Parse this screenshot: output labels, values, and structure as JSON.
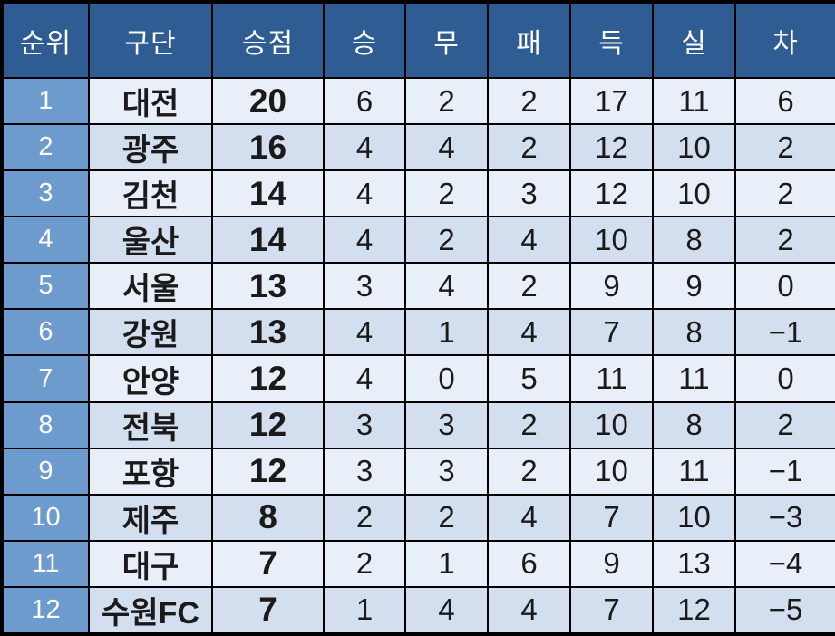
{
  "colors": {
    "header_bg": "#2F5D93",
    "rank_column_bg": "#6E9BCD",
    "row_odd_bg": "#E9EFF8",
    "row_even_bg": "#D3DFEE",
    "border": "#000000",
    "header_text": "#FFFFFF",
    "cell_text": "#1A1A1A"
  },
  "table": {
    "columns": [
      {
        "key": "rank",
        "label": "순위"
      },
      {
        "key": "club",
        "label": "구단"
      },
      {
        "key": "points",
        "label": "승점"
      },
      {
        "key": "wins",
        "label": "승"
      },
      {
        "key": "draws",
        "label": "무"
      },
      {
        "key": "losses",
        "label": "패"
      },
      {
        "key": "goals_for",
        "label": "득"
      },
      {
        "key": "goals_against",
        "label": "실"
      },
      {
        "key": "goal_diff",
        "label": "차"
      }
    ],
    "rows": [
      [
        "1",
        "대전",
        "20",
        "6",
        "2",
        "2",
        "17",
        "11",
        "6"
      ],
      [
        "2",
        "광주",
        "16",
        "4",
        "4",
        "2",
        "12",
        "10",
        "2"
      ],
      [
        "3",
        "김천",
        "14",
        "4",
        "2",
        "3",
        "12",
        "10",
        "2"
      ],
      [
        "4",
        "울산",
        "14",
        "4",
        "2",
        "4",
        "10",
        "8",
        "2"
      ],
      [
        "5",
        "서울",
        "13",
        "3",
        "4",
        "2",
        "9",
        "9",
        "0"
      ],
      [
        "6",
        "강원",
        "13",
        "4",
        "1",
        "4",
        "7",
        "8",
        "−1"
      ],
      [
        "7",
        "안양",
        "12",
        "4",
        "0",
        "5",
        "11",
        "11",
        "0"
      ],
      [
        "8",
        "전북",
        "12",
        "3",
        "3",
        "2",
        "10",
        "8",
        "2"
      ],
      [
        "9",
        "포항",
        "12",
        "3",
        "3",
        "2",
        "10",
        "11",
        "−1"
      ],
      [
        "10",
        "제주",
        "8",
        "2",
        "2",
        "4",
        "7",
        "10",
        "−3"
      ],
      [
        "11",
        "대구",
        "7",
        "2",
        "1",
        "6",
        "9",
        "13",
        "−4"
      ],
      [
        "12",
        "수원FC",
        "7",
        "1",
        "4",
        "4",
        "7",
        "12",
        "−5"
      ]
    ]
  },
  "chart_data": {
    "type": "table",
    "columns": [
      "순위",
      "구단",
      "승점",
      "승",
      "무",
      "패",
      "득",
      "실",
      "차"
    ],
    "rows": [
      [
        1,
        "대전",
        20,
        6,
        2,
        2,
        17,
        11,
        6
      ],
      [
        2,
        "광주",
        16,
        4,
        4,
        2,
        12,
        10,
        2
      ],
      [
        3,
        "김천",
        14,
        4,
        2,
        3,
        12,
        10,
        2
      ],
      [
        4,
        "울산",
        14,
        4,
        2,
        4,
        10,
        8,
        2
      ],
      [
        5,
        "서울",
        13,
        3,
        4,
        2,
        9,
        9,
        0
      ],
      [
        6,
        "강원",
        13,
        4,
        1,
        4,
        7,
        8,
        -1
      ],
      [
        7,
        "안양",
        12,
        4,
        0,
        5,
        11,
        11,
        0
      ],
      [
        8,
        "전북",
        12,
        3,
        3,
        2,
        10,
        8,
        2
      ],
      [
        9,
        "포항",
        12,
        3,
        3,
        2,
        10,
        11,
        -1
      ],
      [
        10,
        "제주",
        8,
        2,
        2,
        4,
        7,
        10,
        -3
      ],
      [
        11,
        "대구",
        7,
        2,
        1,
        6,
        9,
        13,
        -4
      ],
      [
        12,
        "수원FC",
        7,
        1,
        4,
        4,
        7,
        12,
        -5
      ]
    ],
    "legend": "none",
    "grid": "on"
  }
}
